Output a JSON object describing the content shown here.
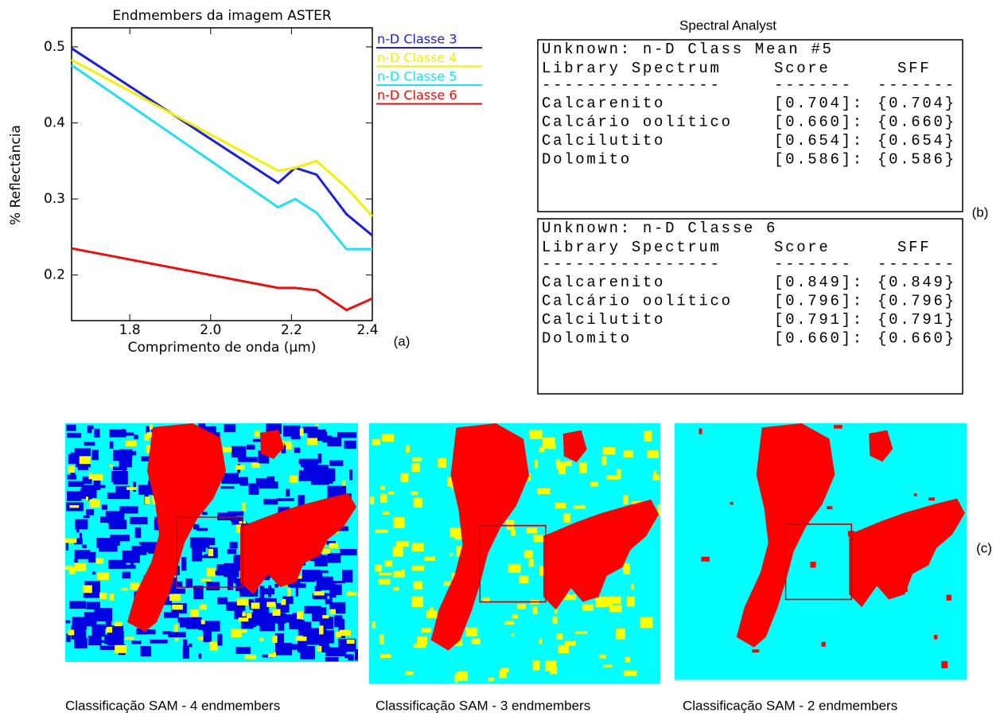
{
  "chart_data": {
    "type": "line",
    "title": "Endmembers da imagem ASTER",
    "x_label": "Comprimento de onda (μm)",
    "y_label": "% Reflectância",
    "panel_label": "(a)",
    "x": [
      1.656,
      2.167,
      2.209,
      2.262,
      2.336,
      2.4
    ],
    "xlim": [
      1.656,
      2.4
    ],
    "xticks": [
      1.8,
      {
        "value": 2,
        "label": "2.0"
      },
      2.2,
      2.4
    ],
    "ylim": [
      0.14,
      0.525
    ],
    "yticks": [
      0.2,
      0.3,
      0.4,
      0.5
    ],
    "series": [
      {
        "name": "n-D Classe 3",
        "color": "#1f1fd6",
        "values": [
          0.498,
          0.321,
          0.341,
          0.332,
          0.28,
          0.252
        ]
      },
      {
        "name": "n-D Classe 4",
        "color": "#f2f200",
        "values": [
          0.483,
          0.337,
          0.341,
          0.35,
          0.315,
          0.277
        ]
      },
      {
        "name": "n-D Classe 5",
        "color": "#22e0f0",
        "values": [
          0.476,
          0.289,
          0.3,
          0.282,
          0.234,
          0.234
        ]
      },
      {
        "name": "n-D Classe 6",
        "color": "#e81010",
        "values": [
          0.235,
          0.183,
          0.183,
          0.18,
          0.154,
          0.169
        ]
      }
    ]
  },
  "spectral_analyst": {
    "title": "Spectral Analyst",
    "panel_label": "(b)",
    "panels": [
      {
        "unknown": "Unknown: n-D Class Mean #5",
        "header": [
          "Library Spectrum",
          "Score",
          "SFF"
        ],
        "rule": [
          "----------------",
          "-------",
          "-------"
        ],
        "rows": [
          [
            "Calcarenito",
            "[0.704]:",
            "{0.704}"
          ],
          [
            "Calcário oolítico",
            "[0.660]:",
            "{0.660}"
          ],
          [
            "Calcilutito",
            "[0.654]:",
            "{0.654}"
          ],
          [
            "Dolomito",
            "[0.586]:",
            "{0.586}"
          ]
        ]
      },
      {
        "unknown": "Unknown: n-D Classe 6",
        "header": [
          "Library Spectrum",
          "Score",
          "SFF"
        ],
        "rule": [
          "----------------",
          "-------",
          "-------"
        ],
        "rows": [
          [
            "Calcarenito",
            "[0.849]:",
            "{0.849}"
          ],
          [
            "Calcário oolítico",
            "[0.796]:",
            "{0.796}"
          ],
          [
            "Calcilutito",
            "[0.791]:",
            "{0.791}"
          ],
          [
            "Dolomito",
            "[0.660]:",
            "{0.660}"
          ]
        ]
      }
    ]
  },
  "maps": {
    "panel_label": "(c)",
    "captions": [
      "Classificação SAM - 4 endmembers",
      "Classificação SAM - 3 endmembers",
      "Classificação SAM - 2 endmembers"
    ]
  }
}
